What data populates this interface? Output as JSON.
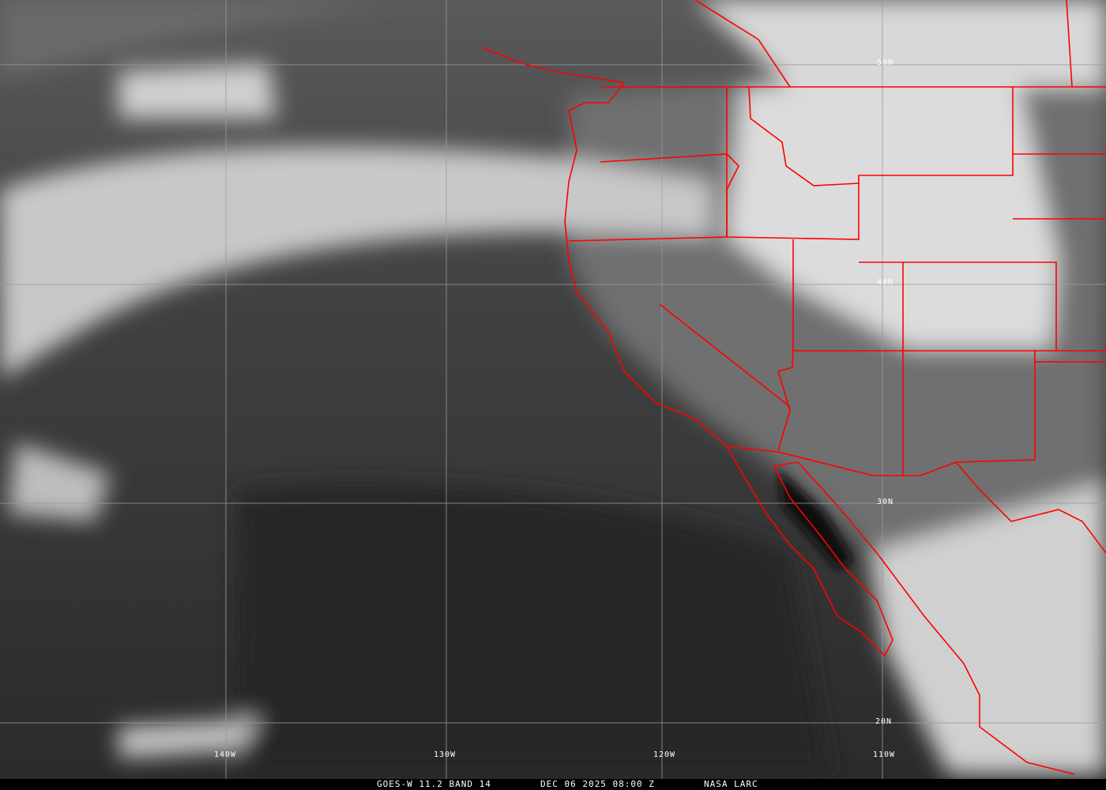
{
  "caption": {
    "satellite": "GOES-W 11.2 BAND 14",
    "datetime": "DEC 06 2025 08:00 Z",
    "source": "NASA LARC"
  },
  "latitude_labels": [
    "50N",
    "40N",
    "30N",
    "20N"
  ],
  "longitude_labels": [
    "140W",
    "130W",
    "120W",
    "110W"
  ],
  "colors": {
    "borders": "#ff0000",
    "grid": "#9a9a9a"
  }
}
